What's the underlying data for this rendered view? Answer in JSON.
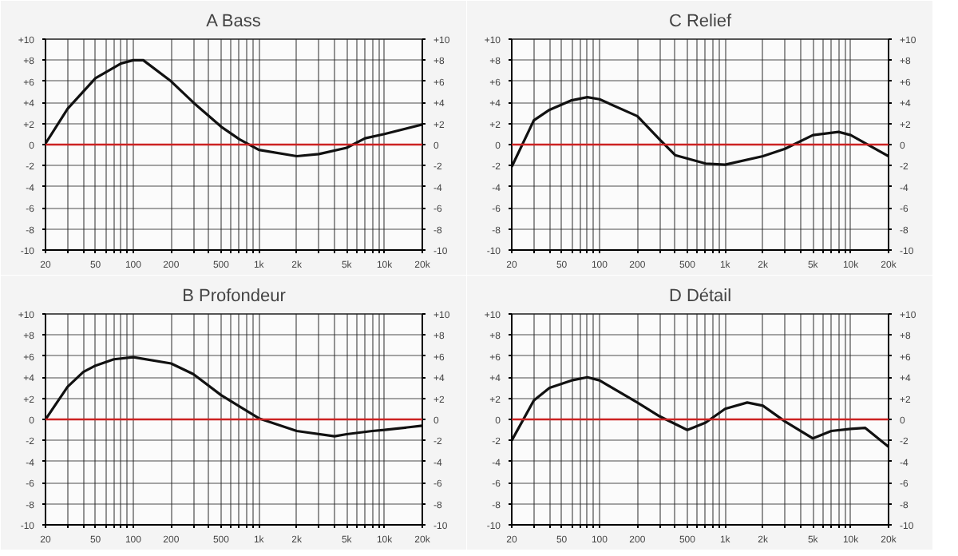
{
  "chart_data": [
    {
      "type": "line",
      "title": "A Bass",
      "x": [
        20,
        30,
        50,
        80,
        100,
        120,
        200,
        300,
        500,
        700,
        1000,
        2000,
        3000,
        5000,
        7000,
        10000,
        20000
      ],
      "series": [
        {
          "color": "#111111",
          "values": [
            0.1,
            3.4,
            6.3,
            7.7,
            8.0,
            8.0,
            6.0,
            4.0,
            1.7,
            0.5,
            -0.5,
            -1.1,
            -0.9,
            -0.3,
            0.6,
            1.0,
            1.9
          ]
        }
      ],
      "log": "x",
      "xlim": [
        20,
        20000
      ],
      "xticks": [
        20,
        {
          "value": 30,
          "label": null
        },
        {
          "value": 40,
          "label": null
        },
        50,
        {
          "value": 60,
          "label": null
        },
        {
          "value": 70,
          "label": null
        },
        {
          "value": 80,
          "label": null
        },
        {
          "value": 90,
          "label": null
        },
        100,
        200,
        {
          "value": 300,
          "label": null
        },
        {
          "value": 400,
          "label": null
        },
        500,
        {
          "value": 600,
          "label": null
        },
        {
          "value": 700,
          "label": null
        },
        {
          "value": 800,
          "label": null
        },
        {
          "value": 900,
          "label": null
        },
        {
          "value": 1000,
          "label": "1k"
        },
        {
          "value": 2000,
          "label": "2k"
        },
        {
          "value": 3000,
          "label": null
        },
        {
          "value": 4000,
          "label": null
        },
        {
          "value": 5000,
          "label": "5k"
        },
        {
          "value": 6000,
          "label": null
        },
        {
          "value": 7000,
          "label": null
        },
        {
          "value": 8000,
          "label": null
        },
        {
          "value": 9000,
          "label": null
        },
        {
          "value": 10000,
          "label": "10k"
        },
        {
          "value": 20000,
          "label": "20k"
        }
      ],
      "ylim": [
        -10,
        10
      ],
      "yticks": [
        -10,
        -8,
        -6,
        -4,
        -2,
        0,
        {
          "value": 2,
          "label": "+2"
        },
        {
          "value": 4,
          "label": "+4"
        },
        {
          "value": 6,
          "label": "+6"
        },
        {
          "value": 8,
          "label": "+8"
        },
        {
          "value": 10,
          "label": "+10"
        }
      ],
      "y2lim": [
        -10,
        10
      ],
      "y2ticks": [
        -10,
        -8,
        -6,
        -4,
        -2,
        0,
        {
          "value": 2,
          "label": "+2"
        },
        {
          "value": 4,
          "label": "+4"
        },
        {
          "value": 6,
          "label": "+6"
        },
        {
          "value": 8,
          "label": "+8"
        },
        {
          "value": 10,
          "label": "+10"
        }
      ],
      "ref_lines": [
        {
          "axis": "y",
          "value": 0,
          "color": "#cc2222"
        }
      ],
      "grid": true
    },
    {
      "type": "line",
      "title": "C Relief",
      "x": [
        20,
        30,
        40,
        60,
        80,
        100,
        200,
        300,
        400,
        700,
        1000,
        2000,
        3000,
        5000,
        8000,
        10000,
        20000
      ],
      "series": [
        {
          "color": "#111111",
          "values": [
            -2.1,
            2.3,
            3.3,
            4.2,
            4.5,
            4.3,
            2.7,
            0.5,
            -1.0,
            -1.8,
            -1.9,
            -1.1,
            -0.4,
            0.9,
            1.2,
            0.9,
            -1.1
          ]
        }
      ],
      "log": "x",
      "xlim": [
        20,
        20000
      ],
      "xticks": [
        20,
        {
          "value": 30,
          "label": null
        },
        {
          "value": 40,
          "label": null
        },
        50,
        {
          "value": 60,
          "label": null
        },
        {
          "value": 70,
          "label": null
        },
        {
          "value": 80,
          "label": null
        },
        {
          "value": 90,
          "label": null
        },
        100,
        200,
        {
          "value": 300,
          "label": null
        },
        {
          "value": 400,
          "label": null
        },
        500,
        {
          "value": 600,
          "label": null
        },
        {
          "value": 700,
          "label": null
        },
        {
          "value": 800,
          "label": null
        },
        {
          "value": 900,
          "label": null
        },
        {
          "value": 1000,
          "label": "1k"
        },
        {
          "value": 2000,
          "label": "2k"
        },
        {
          "value": 3000,
          "label": null
        },
        {
          "value": 4000,
          "label": null
        },
        {
          "value": 5000,
          "label": "5k"
        },
        {
          "value": 6000,
          "label": null
        },
        {
          "value": 7000,
          "label": null
        },
        {
          "value": 8000,
          "label": null
        },
        {
          "value": 9000,
          "label": null
        },
        {
          "value": 10000,
          "label": "10k"
        },
        {
          "value": 20000,
          "label": "20k"
        }
      ],
      "ylim": [
        -10,
        10
      ],
      "yticks": [
        -10,
        -8,
        -6,
        -4,
        -2,
        0,
        {
          "value": 2,
          "label": "+2"
        },
        {
          "value": 4,
          "label": "+4"
        },
        {
          "value": 6,
          "label": "+6"
        },
        {
          "value": 8,
          "label": "+8"
        },
        {
          "value": 10,
          "label": "+10"
        }
      ],
      "y2lim": [
        -10,
        10
      ],
      "y2ticks": [
        -10,
        -8,
        -6,
        -4,
        -2,
        0,
        {
          "value": 2,
          "label": "+2"
        },
        {
          "value": 4,
          "label": "+4"
        },
        {
          "value": 6,
          "label": "+6"
        },
        {
          "value": 8,
          "label": "+8"
        },
        {
          "value": 10,
          "label": "+10"
        }
      ],
      "ref_lines": [
        {
          "axis": "y",
          "value": 0,
          "color": "#cc2222"
        }
      ],
      "grid": true
    },
    {
      "type": "line",
      "title": "B Profondeur",
      "x": [
        20,
        30,
        40,
        50,
        70,
        100,
        200,
        300,
        500,
        1000,
        2000,
        4000,
        5000,
        8000,
        10000,
        20000
      ],
      "series": [
        {
          "color": "#111111",
          "values": [
            0.0,
            3.1,
            4.5,
            5.1,
            5.7,
            5.9,
            5.3,
            4.3,
            2.3,
            0.1,
            -1.1,
            -1.6,
            -1.4,
            -1.1,
            -1.0,
            -0.6
          ]
        }
      ],
      "log": "x",
      "xlim": [
        20,
        20000
      ],
      "xticks": [
        20,
        {
          "value": 30,
          "label": null
        },
        {
          "value": 40,
          "label": null
        },
        50,
        {
          "value": 60,
          "label": null
        },
        {
          "value": 70,
          "label": null
        },
        {
          "value": 80,
          "label": null
        },
        {
          "value": 90,
          "label": null
        },
        100,
        200,
        {
          "value": 300,
          "label": null
        },
        {
          "value": 400,
          "label": null
        },
        500,
        {
          "value": 600,
          "label": null
        },
        {
          "value": 700,
          "label": null
        },
        {
          "value": 800,
          "label": null
        },
        {
          "value": 900,
          "label": null
        },
        {
          "value": 1000,
          "label": "1k"
        },
        {
          "value": 2000,
          "label": "2k"
        },
        {
          "value": 3000,
          "label": null
        },
        {
          "value": 4000,
          "label": null
        },
        {
          "value": 5000,
          "label": "5k"
        },
        {
          "value": 6000,
          "label": null
        },
        {
          "value": 7000,
          "label": null
        },
        {
          "value": 8000,
          "label": null
        },
        {
          "value": 9000,
          "label": null
        },
        {
          "value": 10000,
          "label": "10k"
        },
        {
          "value": 20000,
          "label": "20k"
        }
      ],
      "ylim": [
        -10,
        10
      ],
      "yticks": [
        -10,
        -8,
        -6,
        -4,
        -2,
        0,
        {
          "value": 2,
          "label": "+2"
        },
        {
          "value": 4,
          "label": "+4"
        },
        {
          "value": 6,
          "label": "+6"
        },
        {
          "value": 8,
          "label": "+8"
        },
        {
          "value": 10,
          "label": "+10"
        }
      ],
      "y2lim": [
        -10,
        10
      ],
      "y2ticks": [
        -10,
        -8,
        -6,
        -4,
        -2,
        0,
        {
          "value": 2,
          "label": "+2"
        },
        {
          "value": 4,
          "label": "+4"
        },
        {
          "value": 6,
          "label": "+6"
        },
        {
          "value": 8,
          "label": "+8"
        },
        {
          "value": 10,
          "label": "+10"
        }
      ],
      "ref_lines": [
        {
          "axis": "y",
          "value": 0,
          "color": "#cc2222"
        }
      ],
      "grid": true
    },
    {
      "type": "line",
      "title": "D Détail",
      "x": [
        20,
        30,
        40,
        60,
        80,
        100,
        200,
        300,
        500,
        700,
        1000,
        1500,
        2000,
        3000,
        5000,
        7000,
        10000,
        13000,
        20000
      ],
      "series": [
        {
          "color": "#111111",
          "values": [
            -2.0,
            1.8,
            3.0,
            3.7,
            4.0,
            3.7,
            1.6,
            0.3,
            -1.0,
            -0.3,
            1.0,
            1.6,
            1.3,
            -0.2,
            -1.8,
            -1.1,
            -0.9,
            -0.8,
            -2.6
          ]
        }
      ],
      "log": "x",
      "xlim": [
        20,
        20000
      ],
      "xticks": [
        20,
        {
          "value": 30,
          "label": null
        },
        {
          "value": 40,
          "label": null
        },
        50,
        {
          "value": 60,
          "label": null
        },
        {
          "value": 70,
          "label": null
        },
        {
          "value": 80,
          "label": null
        },
        {
          "value": 90,
          "label": null
        },
        100,
        200,
        {
          "value": 300,
          "label": null
        },
        {
          "value": 400,
          "label": null
        },
        500,
        {
          "value": 600,
          "label": null
        },
        {
          "value": 700,
          "label": null
        },
        {
          "value": 800,
          "label": null
        },
        {
          "value": 900,
          "label": null
        },
        {
          "value": 1000,
          "label": "1k"
        },
        {
          "value": 2000,
          "label": "2k"
        },
        {
          "value": 3000,
          "label": null
        },
        {
          "value": 4000,
          "label": null
        },
        {
          "value": 5000,
          "label": "5k"
        },
        {
          "value": 6000,
          "label": null
        },
        {
          "value": 7000,
          "label": null
        },
        {
          "value": 8000,
          "label": null
        },
        {
          "value": 9000,
          "label": null
        },
        {
          "value": 10000,
          "label": "10k"
        },
        {
          "value": 20000,
          "label": "20k"
        }
      ],
      "ylim": [
        -10,
        10
      ],
      "yticks": [
        -10,
        -8,
        -6,
        -4,
        -2,
        0,
        {
          "value": 2,
          "label": "+2"
        },
        {
          "value": 4,
          "label": "+4"
        },
        {
          "value": 6,
          "label": "+6"
        },
        {
          "value": 8,
          "label": "+8"
        },
        {
          "value": 10,
          "label": "+10"
        }
      ],
      "y2lim": [
        -10,
        10
      ],
      "y2ticks": [
        -10,
        -8,
        -6,
        -4,
        -2,
        0,
        {
          "value": 2,
          "label": "+2"
        },
        {
          "value": 4,
          "label": "+4"
        },
        {
          "value": 6,
          "label": "+6"
        },
        {
          "value": 8,
          "label": "+8"
        },
        {
          "value": 10,
          "label": "+10"
        }
      ],
      "ref_lines": [
        {
          "axis": "y",
          "value": 0,
          "color": "#cc2222"
        }
      ],
      "grid": true
    }
  ]
}
